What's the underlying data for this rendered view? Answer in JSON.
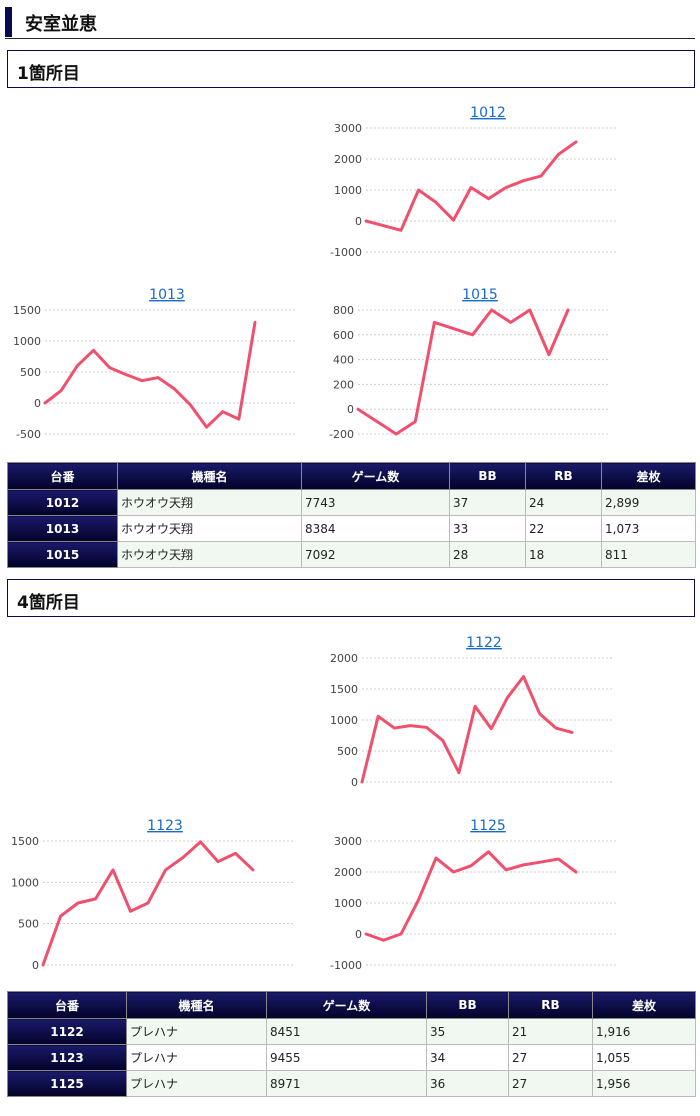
{
  "page": {
    "title": "安室並恵"
  },
  "sections": [
    {
      "label": "1箇所目",
      "charts": [
        {
          "id": "1012",
          "title": "1012",
          "ylim": [
            -1000,
            3000
          ],
          "ticks": [
            3000,
            2000,
            1000,
            0,
            -1000
          ],
          "values": [
            0,
            -150,
            -300,
            1000,
            600,
            30,
            1080,
            720,
            1080,
            1300,
            1450,
            2150,
            2550
          ]
        },
        {
          "id": "1013",
          "title": "1013",
          "ylim": [
            -500,
            1500
          ],
          "ticks": [
            1500,
            1000,
            500,
            0,
            -500
          ],
          "values": [
            0,
            200,
            600,
            850,
            570,
            460,
            360,
            410,
            230,
            -30,
            -390,
            -140,
            -260,
            1300
          ]
        },
        {
          "id": "1015",
          "title": "1015",
          "ylim": [
            -200,
            800
          ],
          "ticks": [
            800,
            600,
            400,
            200,
            0,
            -200
          ],
          "values": [
            0,
            -100,
            -200,
            -100,
            700,
            650,
            600,
            800,
            700,
            800,
            440,
            800
          ]
        }
      ],
      "table": {
        "headers": [
          "台番",
          "機種名",
          "ゲーム数",
          "BB",
          "RB",
          "差枚"
        ],
        "rows": [
          [
            "1012",
            "ホウオウ天翔",
            "7743",
            "37",
            "24",
            "2,899"
          ],
          [
            "1013",
            "ホウオウ天翔",
            "8384",
            "33",
            "22",
            "1,073"
          ],
          [
            "1015",
            "ホウオウ天翔",
            "7092",
            "28",
            "18",
            "811"
          ]
        ]
      }
    },
    {
      "label": "4箇所目",
      "charts": [
        {
          "id": "1122",
          "title": "1122",
          "ylim": [
            0,
            2000
          ],
          "ticks": [
            2000,
            1500,
            1000,
            500,
            0
          ],
          "values": [
            0,
            1060,
            870,
            910,
            880,
            670,
            150,
            1220,
            860,
            1360,
            1700,
            1100,
            870,
            800
          ]
        },
        {
          "id": "1123",
          "title": "1123",
          "ylim": [
            0,
            1500
          ],
          "ticks": [
            1500,
            1000,
            500,
            0
          ],
          "values": [
            0,
            590,
            750,
            800,
            1150,
            650,
            750,
            1150,
            1300,
            1490,
            1250,
            1350,
            1150
          ]
        },
        {
          "id": "1125",
          "title": "1125",
          "ylim": [
            -1000,
            3000
          ],
          "ticks": [
            3000,
            2000,
            1000,
            0,
            -1000
          ],
          "values": [
            0,
            -200,
            0,
            1100,
            2450,
            2000,
            2200,
            2650,
            2070,
            2230,
            2320,
            2420,
            2000
          ]
        }
      ],
      "table": {
        "headers": [
          "台番",
          "機種名",
          "ゲーム数",
          "BB",
          "RB",
          "差枚"
        ],
        "rows": [
          [
            "1122",
            "プレハナ",
            "8451",
            "35",
            "21",
            "1,916"
          ],
          [
            "1123",
            "プレハナ",
            "9455",
            "34",
            "27",
            "1,055"
          ],
          [
            "1125",
            "プレハナ",
            "8971",
            "36",
            "27",
            "1,956"
          ]
        ]
      }
    }
  ],
  "chart_data": [
    {
      "type": "line",
      "title": "1012",
      "ylim": [
        -1000,
        3000
      ],
      "y": [
        0,
        -150,
        -300,
        1000,
        600,
        30,
        1080,
        720,
        1080,
        1300,
        1450,
        2150,
        2550
      ]
    },
    {
      "type": "line",
      "title": "1013",
      "ylim": [
        -500,
        1500
      ],
      "y": [
        0,
        200,
        600,
        850,
        570,
        460,
        360,
        410,
        230,
        -30,
        -390,
        -140,
        -260,
        1300
      ]
    },
    {
      "type": "line",
      "title": "1015",
      "ylim": [
        -200,
        800
      ],
      "y": [
        0,
        -100,
        -200,
        -100,
        700,
        650,
        600,
        800,
        700,
        800,
        440,
        800
      ]
    },
    {
      "type": "line",
      "title": "1122",
      "ylim": [
        0,
        2000
      ],
      "y": [
        0,
        1060,
        870,
        910,
        880,
        670,
        150,
        1220,
        860,
        1360,
        1700,
        1100,
        870,
        800
      ]
    },
    {
      "type": "line",
      "title": "1123",
      "ylim": [
        0,
        1500
      ],
      "y": [
        0,
        590,
        750,
        800,
        1150,
        650,
        750,
        1150,
        1300,
        1490,
        1250,
        1350,
        1150
      ]
    },
    {
      "type": "line",
      "title": "1125",
      "ylim": [
        -1000,
        3000
      ],
      "y": [
        0,
        -200,
        0,
        1100,
        2450,
        2000,
        2200,
        2650,
        2070,
        2230,
        2320,
        2420,
        2000
      ]
    }
  ],
  "colors": {
    "line": "#f0506e",
    "grid": "#cccccc",
    "header_bg": "#0a0a50",
    "title_link": "#1a6ac8"
  }
}
